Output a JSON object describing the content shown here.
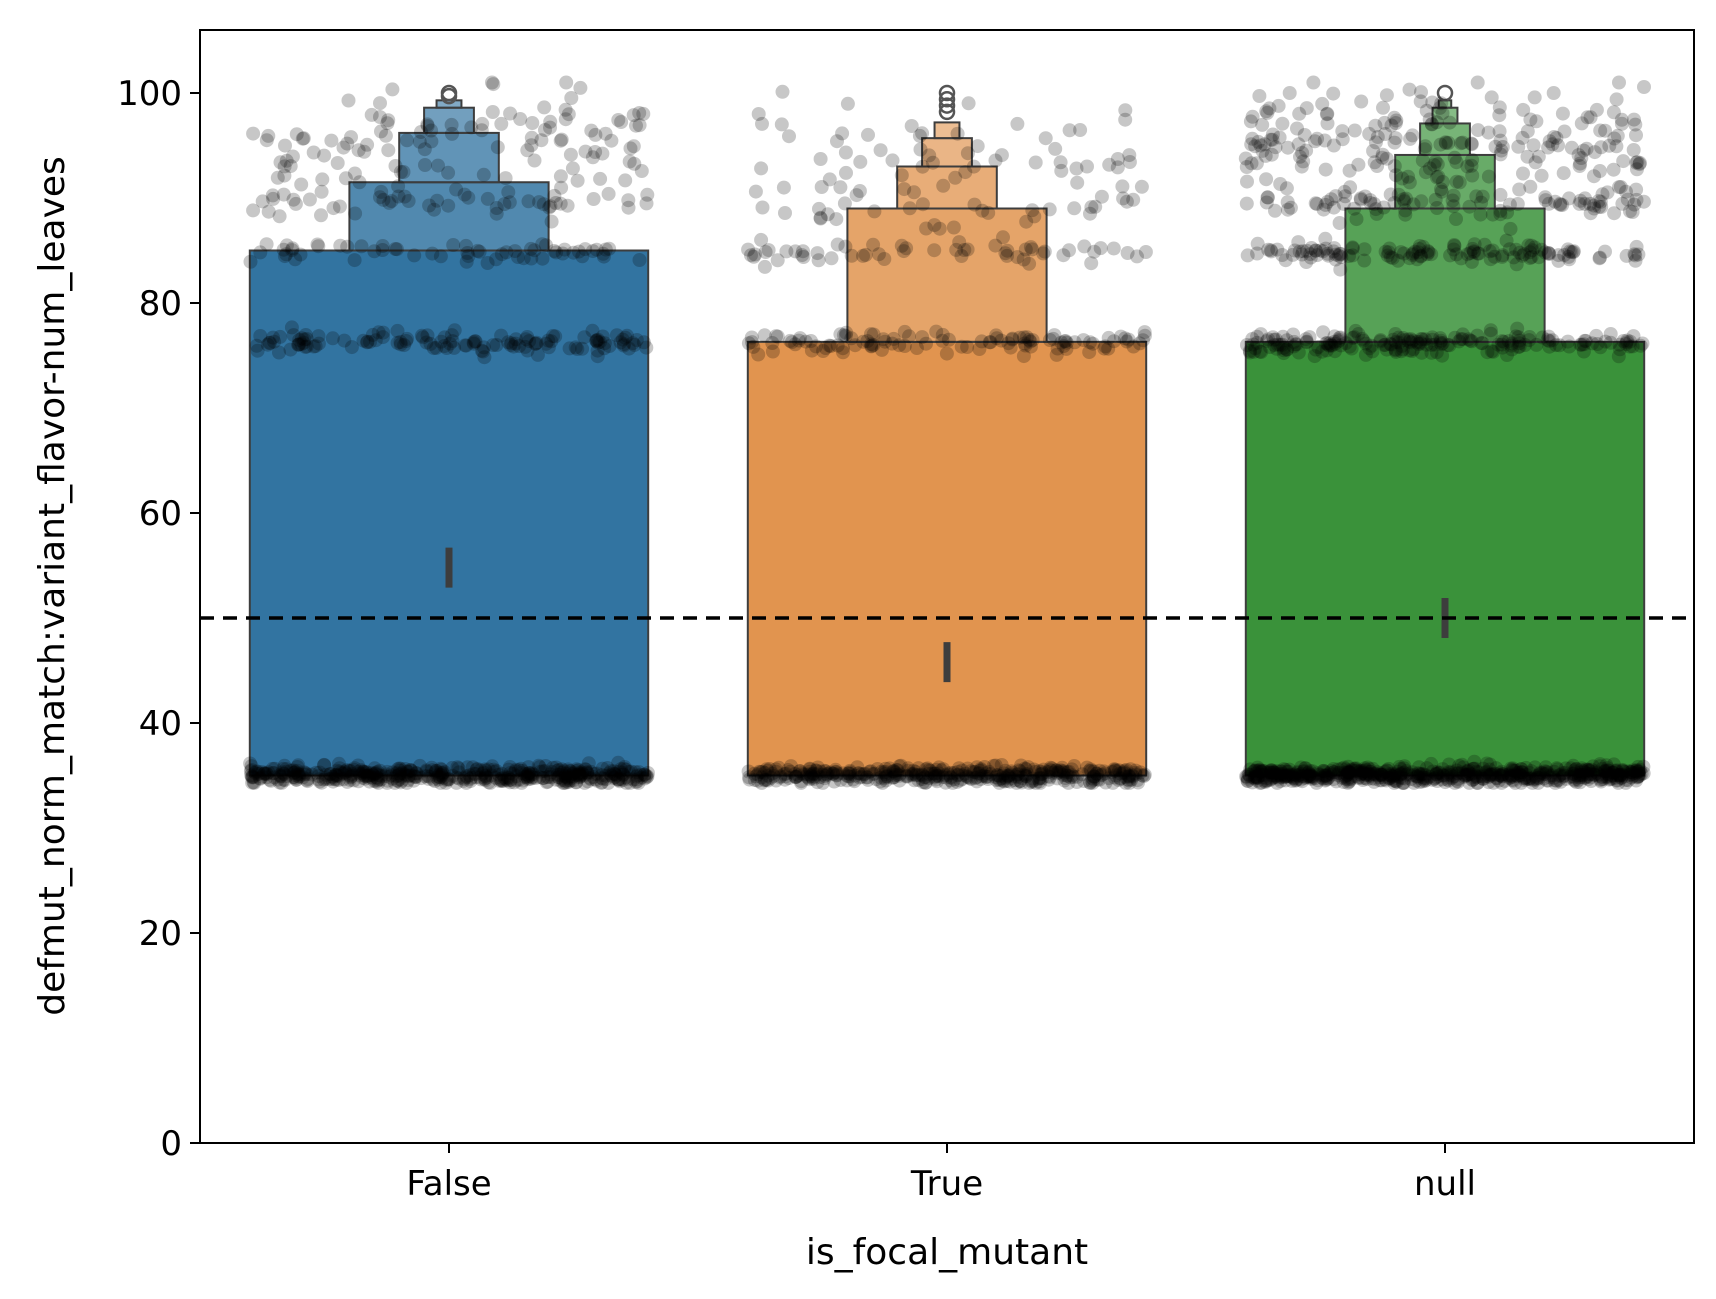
{
  "chart_data": {
    "type": "boxen",
    "xlabel": "is_focal_mutant",
    "ylabel": "defmut_norm_match:variant_flavor-num_leaves",
    "categories": [
      "False",
      "True",
      "null"
    ],
    "ylim": [
      0,
      106
    ],
    "yticks": [
      0,
      20,
      40,
      60,
      80,
      100
    ],
    "reference_line": {
      "y": 50,
      "style": "dashed",
      "color": "#000000"
    },
    "colors": [
      "#3274a1",
      "#e1944f",
      "#3a923a"
    ],
    "series": [
      {
        "category": "False",
        "color": "#3274a1",
        "boxes": [
          [
            35,
            85
          ],
          [
            85,
            91.5
          ],
          [
            91.5,
            96.2
          ],
          [
            96.2,
            98.6
          ],
          [
            98.6,
            99.3
          ]
        ],
        "median": 54.8,
        "outliers": [
          99.7,
          100
        ],
        "point_bands": [
          {
            "center": 35,
            "spread": 0.7,
            "n": 500,
            "jitter": 0.4
          },
          {
            "center": 76.2,
            "spread": 0.8,
            "n": 130,
            "jitter": 0.4
          },
          {
            "center": 84.8,
            "spread": 0.8,
            "n": 60,
            "jitter": 0.4
          },
          {
            "center": 89.5,
            "spread": 1.2,
            "n": 45,
            "jitter": 0.4
          },
          {
            "center": 95,
            "spread": 4.8,
            "n": 120,
            "jitter": 0.4
          }
        ]
      },
      {
        "category": "True",
        "color": "#e1944f",
        "boxes": [
          [
            35,
            76.3
          ],
          [
            76.3,
            89
          ],
          [
            89,
            93
          ],
          [
            93,
            95.7
          ],
          [
            95.7,
            97.2
          ]
        ],
        "median": 45.8,
        "outliers": [
          98.2,
          98.8,
          99.4,
          100
        ],
        "point_bands": [
          {
            "center": 35,
            "spread": 0.7,
            "n": 420,
            "jitter": 0.4
          },
          {
            "center": 76.2,
            "spread": 0.8,
            "n": 110,
            "jitter": 0.4
          },
          {
            "center": 84.8,
            "spread": 0.8,
            "n": 55,
            "jitter": 0.4
          },
          {
            "center": 89,
            "spread": 1.5,
            "n": 30,
            "jitter": 0.4
          },
          {
            "center": 94,
            "spread": 4.8,
            "n": 65,
            "jitter": 0.4
          }
        ]
      },
      {
        "category": "null",
        "color": "#3a923a",
        "boxes": [
          [
            35,
            76.3
          ],
          [
            76.3,
            89
          ],
          [
            89,
            94.1
          ],
          [
            94.1,
            97.1
          ],
          [
            97.1,
            98.6
          ],
          [
            98.6,
            99.3
          ]
        ],
        "median": 50,
        "outliers": [
          100
        ],
        "point_bands": [
          {
            "center": 35,
            "spread": 0.7,
            "n": 650,
            "jitter": 0.4
          },
          {
            "center": 76.2,
            "spread": 0.8,
            "n": 200,
            "jitter": 0.4
          },
          {
            "center": 84.8,
            "spread": 0.8,
            "n": 130,
            "jitter": 0.4
          },
          {
            "center": 89.5,
            "spread": 1.2,
            "n": 80,
            "jitter": 0.4
          },
          {
            "center": 95,
            "spread": 4.8,
            "n": 220,
            "jitter": 0.4
          }
        ]
      }
    ]
  }
}
